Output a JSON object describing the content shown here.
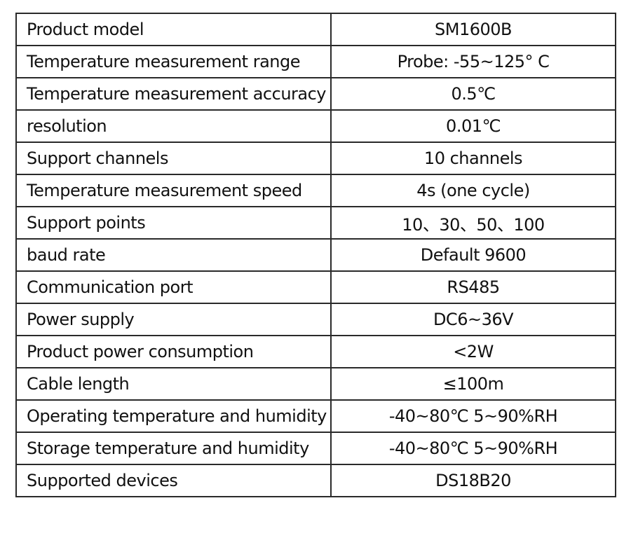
{
  "table": {
    "rows": [
      [
        "Product model",
        "SM1600B"
      ],
      [
        "Temperature measurement range",
        "Probe: -55~125° C"
      ],
      [
        "Temperature measurement accuracy",
        "0.5℃"
      ],
      [
        "resolution",
        "0.01℃"
      ],
      [
        "Support channels",
        "10 channels"
      ],
      [
        "Temperature measurement speed",
        "4s (one cycle)"
      ],
      [
        "Support points",
        "10、30、50、100"
      ],
      [
        "baud rate",
        "Default 9600"
      ],
      [
        "Communication port",
        "RS485"
      ],
      [
        "Power supply",
        "DC6~36V"
      ],
      [
        "Product power consumption",
        "<2W"
      ],
      [
        "Cable length",
        "≤100m"
      ],
      [
        "Operating temperature and humidity",
        "-40~80℃ 5~90%RH"
      ],
      [
        "Storage temperature and humidity",
        "-40~80℃ 5~90%RH"
      ],
      [
        "Supported devices",
        "DS18B20"
      ]
    ]
  }
}
